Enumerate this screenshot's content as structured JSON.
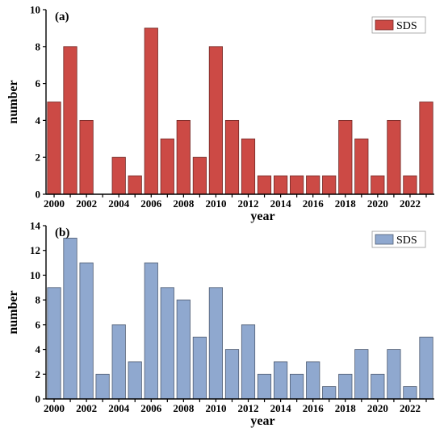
{
  "chart_data": [
    {
      "type": "bar",
      "panel_label": "(a)",
      "xlabel": "year",
      "ylabel": "number",
      "ylim": [
        0,
        10
      ],
      "yticks": [
        0,
        2,
        4,
        6,
        8,
        10
      ],
      "xticks": [
        "2000",
        "2002",
        "2004",
        "2006",
        "2008",
        "2010",
        "2012",
        "2014",
        "2016",
        "2018",
        "2020",
        "2022"
      ],
      "legend_position": "top-right",
      "grid": false,
      "bar_color": "#cc4a45",
      "categories": [
        "2000",
        "2001",
        "2002",
        "2003",
        "2004",
        "2005",
        "2006",
        "2007",
        "2008",
        "2009",
        "2010",
        "2011",
        "2012",
        "2013",
        "2014",
        "2015",
        "2016",
        "2017",
        "2018",
        "2019",
        "2020",
        "2021",
        "2022",
        "2023"
      ],
      "series": [
        {
          "name": "SDS",
          "values": [
            5,
            8,
            4,
            0,
            2,
            1,
            9,
            3,
            4,
            2,
            8,
            4,
            3,
            1,
            1,
            1,
            1,
            1,
            4,
            3,
            1,
            4,
            1,
            5
          ]
        }
      ]
    },
    {
      "type": "bar",
      "panel_label": "(b)",
      "xlabel": "year",
      "ylabel": "number",
      "ylim": [
        0,
        14
      ],
      "yticks": [
        0,
        2,
        4,
        6,
        8,
        10,
        12,
        14
      ],
      "xticks": [
        "2000",
        "2002",
        "2004",
        "2006",
        "2008",
        "2010",
        "2012",
        "2014",
        "2016",
        "2018",
        "2020",
        "2022"
      ],
      "legend_position": "top-right",
      "grid": false,
      "bar_color": "#8fa8cf",
      "categories": [
        "2000",
        "2001",
        "2002",
        "2003",
        "2004",
        "2005",
        "2006",
        "2007",
        "2008",
        "2009",
        "2010",
        "2011",
        "2012",
        "2013",
        "2014",
        "2015",
        "2016",
        "2017",
        "2018",
        "2019",
        "2020",
        "2021",
        "2022",
        "2023"
      ],
      "series": [
        {
          "name": "SDS",
          "values": [
            9,
            13,
            11,
            2,
            6,
            3,
            11,
            9,
            8,
            5,
            9,
            4,
            6,
            2,
            3,
            2,
            3,
            1,
            2,
            4,
            2,
            4,
            1,
            5
          ]
        }
      ]
    }
  ]
}
